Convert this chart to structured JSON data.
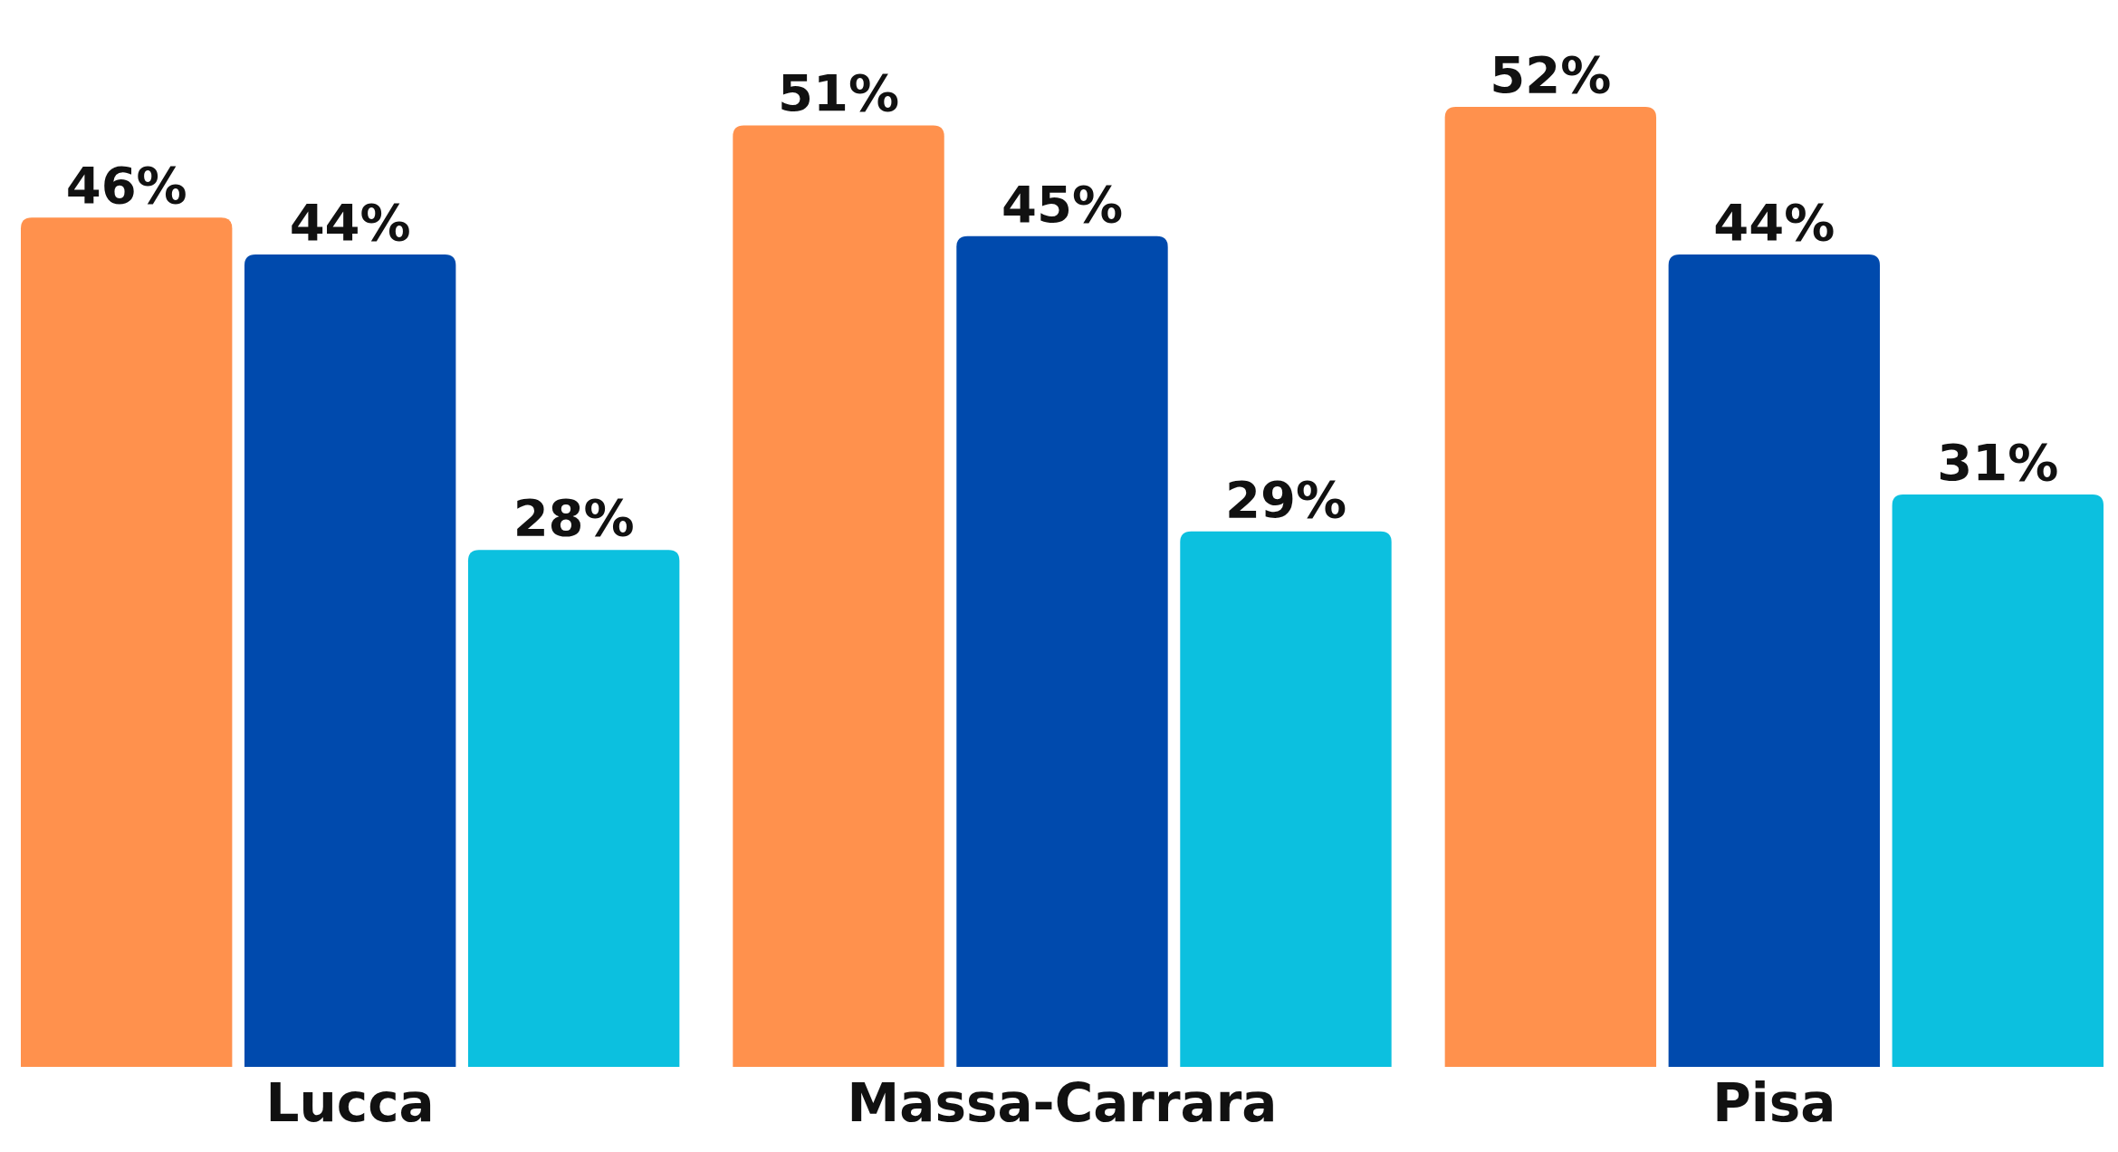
{
  "chart_data": {
    "type": "bar",
    "categories": [
      "Lucca",
      "Massa-Carrara",
      "Pisa"
    ],
    "series": [
      {
        "color": "#ff914d",
        "values": [
          46,
          51,
          52
        ],
        "value_labels": [
          "46%",
          "51%",
          "52%"
        ]
      },
      {
        "color": "#004aad",
        "values": [
          44,
          45,
          44
        ],
        "value_labels": [
          "44%",
          "45%",
          "44%"
        ]
      },
      {
        "color": "#0cc0df",
        "values": [
          28,
          29,
          31
        ],
        "value_labels": [
          "28%",
          "29%",
          "31%"
        ]
      }
    ]
  }
}
